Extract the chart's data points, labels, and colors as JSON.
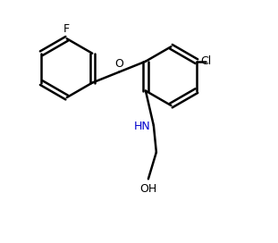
{
  "bg_color": "#ffffff",
  "line_color": "#000000",
  "nh_color": "#0000cd",
  "o_color": "#000000",
  "oh_color": "#000000",
  "lw": 1.8,
  "figsize": [
    3.11,
    2.72
  ],
  "dpi": 100,
  "F_label": "F",
  "Cl_label": "Cl",
  "O_label": "O",
  "NH_label": "HN",
  "OH_label": "OH"
}
